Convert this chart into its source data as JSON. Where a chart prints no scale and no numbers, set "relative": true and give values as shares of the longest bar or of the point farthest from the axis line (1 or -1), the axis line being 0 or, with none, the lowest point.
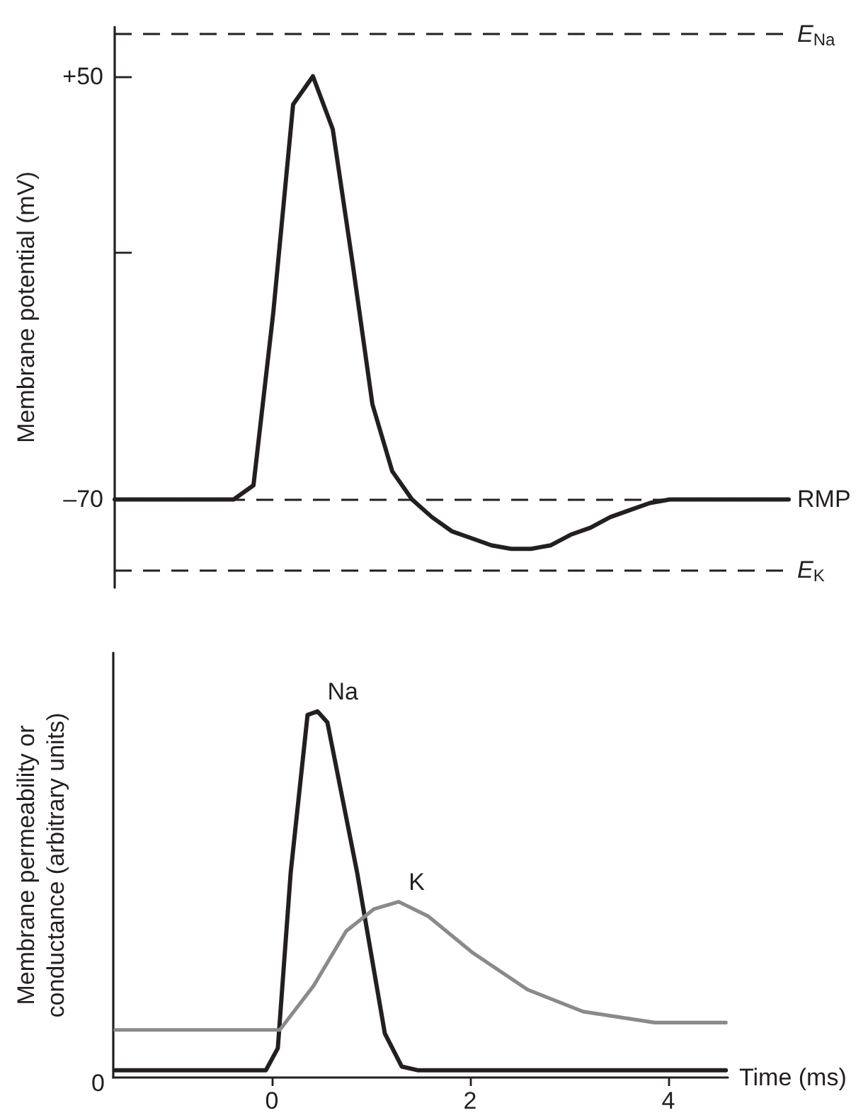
{
  "chart_data": [
    {
      "type": "line",
      "ylabel": "Membrane potential (mV)",
      "ylim": [
        -95,
        64
      ],
      "yticks": [
        {
          "value": 50,
          "label": "+50"
        },
        {
          "value": 0,
          "label": null
        },
        {
          "value": -70,
          "label": "–70"
        }
      ],
      "tick_labels": "y",
      "grid": false,
      "legend": false,
      "marker": "none",
      "line_style": "solid",
      "categories": [
        null,
        null,
        null,
        null,
        null,
        null,
        null,
        null,
        null,
        null,
        null,
        null,
        null,
        null,
        null,
        null,
        null,
        null,
        null,
        null,
        null,
        null,
        null,
        null,
        null,
        null,
        null,
        null,
        null,
        null,
        null,
        null,
        null,
        null,
        null
      ],
      "series": [
        {
          "color": "#231f20",
          "values": [
            -70,
            -70,
            -70,
            -70,
            -70,
            -70,
            -70,
            -66,
            -17,
            42,
            50,
            35,
            -3,
            -43,
            -62,
            -70,
            -75,
            -79,
            -81,
            -83,
            -84,
            -84,
            -83,
            -80,
            -78,
            -75,
            -73,
            -71,
            -70,
            -70,
            -70,
            -70,
            -70,
            -70,
            -70
          ]
        }
      ],
      "ref_lines": [
        {
          "axis": "y",
          "value": 62,
          "label": "E$_{Na}$",
          "color": "#231f20",
          "line_style": "dashed"
        },
        {
          "axis": "y",
          "value": -70,
          "label": "RMP",
          "color": "#231f20",
          "line_style": "dashed"
        },
        {
          "axis": "y",
          "value": -90,
          "label": "E$_{K}$",
          "color": "#231f20",
          "line_style": "dashed"
        }
      ]
    },
    {
      "type": "line",
      "xlabel": "Time (ms)",
      "ylabel": "Membrane permeability or conductance (arbitrary units)",
      "relative": true,
      "xlim": [
        -1.6,
        4.6
      ],
      "xticks": [
        0,
        2,
        4
      ],
      "tick_labels": "x",
      "grid": false,
      "legend": false,
      "marker": "none",
      "line_style": "solid",
      "annotations": [
        "0"
      ],
      "series": [
        {
          "name": "Na",
          "color": "#231f20",
          "x": [
            -1.58,
            -0.06,
            0.06,
            0.19,
            0.36,
            0.46,
            0.56,
            0.86,
            1.14,
            1.31,
            1.47,
            4.58
          ],
          "values": [
            0.02,
            0.02,
            0.08,
            0.56,
            0.99,
            1.0,
            0.97,
            0.56,
            0.12,
            0.03,
            0.02,
            0.02
          ]
        },
        {
          "name": "K",
          "color": "#8a8a8a",
          "x": [
            -1.58,
            0.08,
            0.42,
            0.75,
            1.03,
            1.28,
            1.58,
            2.03,
            2.58,
            3.14,
            3.86,
            4.58
          ],
          "values": [
            0.13,
            0.13,
            0.25,
            0.4,
            0.46,
            0.48,
            0.44,
            0.34,
            0.24,
            0.18,
            0.15,
            0.15
          ]
        }
      ]
    }
  ]
}
